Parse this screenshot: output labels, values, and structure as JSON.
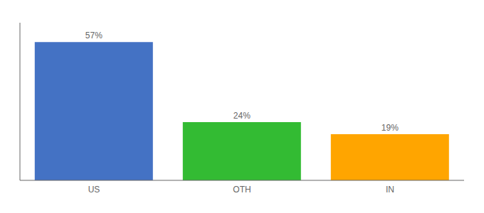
{
  "chart_data": {
    "type": "bar",
    "categories": [
      "US",
      "OTH",
      "IN"
    ],
    "values": [
      57,
      24,
      19
    ],
    "value_labels": [
      "57%",
      "24%",
      "19%"
    ],
    "data_labels": true,
    "colors": [
      "#4472C4",
      "#33BB33",
      "#FFA500"
    ],
    "ylim": [
      0,
      65
    ],
    "tick_labels": "x",
    "grid": false
  }
}
